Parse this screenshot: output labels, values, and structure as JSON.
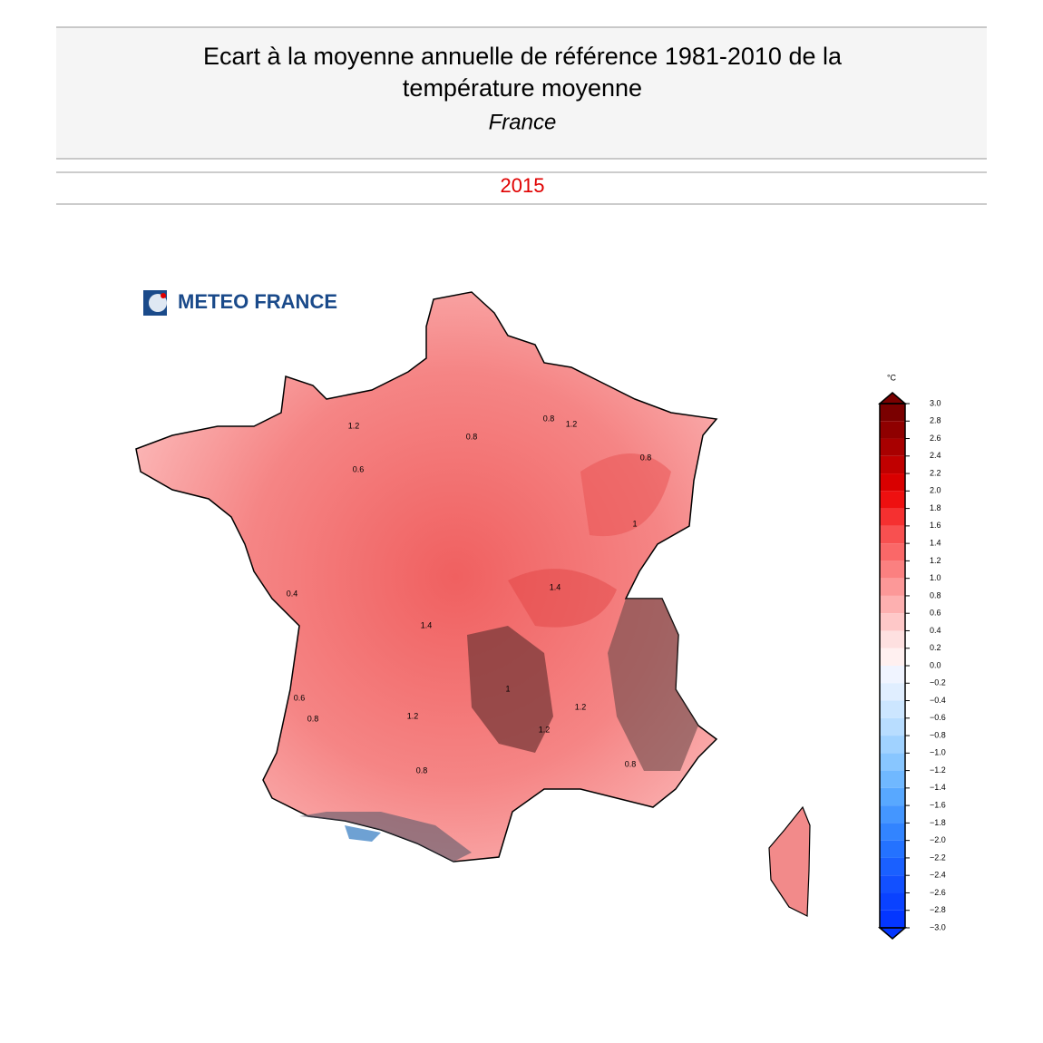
{
  "header": {
    "title_line1": "Ecart à la moyenne annuelle de référence 1981-2010 de la",
    "title_line2": "température moyenne",
    "region": "France",
    "year": "2015"
  },
  "logo": {
    "text": "METEO FRANCE"
  },
  "map": {
    "contour_labels": [
      "1.2",
      "0.8",
      "0.6",
      "1",
      "1.2",
      "0.8",
      "1.4",
      "0.8",
      "1.2",
      "1",
      "0.8",
      "1.2",
      "0.6",
      "0.8",
      "1.4",
      "1.2",
      "0.4",
      "0.8"
    ]
  },
  "colorbar": {
    "unit": "°C",
    "ticks": [
      {
        "value": 3.0,
        "label": "3.0"
      },
      {
        "value": 2.8,
        "label": "2.8"
      },
      {
        "value": 2.6,
        "label": "2.6"
      },
      {
        "value": 2.4,
        "label": "2.4"
      },
      {
        "value": 2.2,
        "label": "2.2"
      },
      {
        "value": 2.0,
        "label": "2.0"
      },
      {
        "value": 1.8,
        "label": "1.8"
      },
      {
        "value": 1.6,
        "label": "1.6"
      },
      {
        "value": 1.4,
        "label": "1.4"
      },
      {
        "value": 1.2,
        "label": "1.2"
      },
      {
        "value": 1.0,
        "label": "1.0"
      },
      {
        "value": 0.8,
        "label": "0.8"
      },
      {
        "value": 0.6,
        "label": "0.6"
      },
      {
        "value": 0.4,
        "label": "0.4"
      },
      {
        "value": 0.2,
        "label": "0.2"
      },
      {
        "value": 0.0,
        "label": "0.0"
      },
      {
        "value": -0.2,
        "label": "−0.2"
      },
      {
        "value": -0.4,
        "label": "−0.4"
      },
      {
        "value": -0.6,
        "label": "−0.6"
      },
      {
        "value": -0.8,
        "label": "−0.8"
      },
      {
        "value": -1.0,
        "label": "−1.0"
      },
      {
        "value": -1.2,
        "label": "−1.2"
      },
      {
        "value": -1.4,
        "label": "−1.4"
      },
      {
        "value": -1.6,
        "label": "−1.6"
      },
      {
        "value": -1.8,
        "label": "−1.8"
      },
      {
        "value": -2.0,
        "label": "−2.0"
      },
      {
        "value": -2.2,
        "label": "−2.2"
      },
      {
        "value": -2.4,
        "label": "−2.4"
      },
      {
        "value": -2.6,
        "label": "−2.6"
      },
      {
        "value": -2.8,
        "label": "−2.8"
      },
      {
        "value": -3.0,
        "label": "−3.0"
      }
    ],
    "colors": [
      "#7a0000",
      "#8f0000",
      "#a80000",
      "#c00000",
      "#d90000",
      "#ee1010",
      "#f53030",
      "#f85050",
      "#fa6868",
      "#fb8080",
      "#fc9898",
      "#fdb0b0",
      "#fec8c8",
      "#fee0e0",
      "#fff0f0",
      "#f0f4ff",
      "#e0eeff",
      "#cce6ff",
      "#b8ddff",
      "#a0d2ff",
      "#88c6ff",
      "#70b8ff",
      "#58a8ff",
      "#4496ff",
      "#3284ff",
      "#2472ff",
      "#1a60ff",
      "#1250ff",
      "#0a42ff",
      "#0436ff"
    ]
  }
}
